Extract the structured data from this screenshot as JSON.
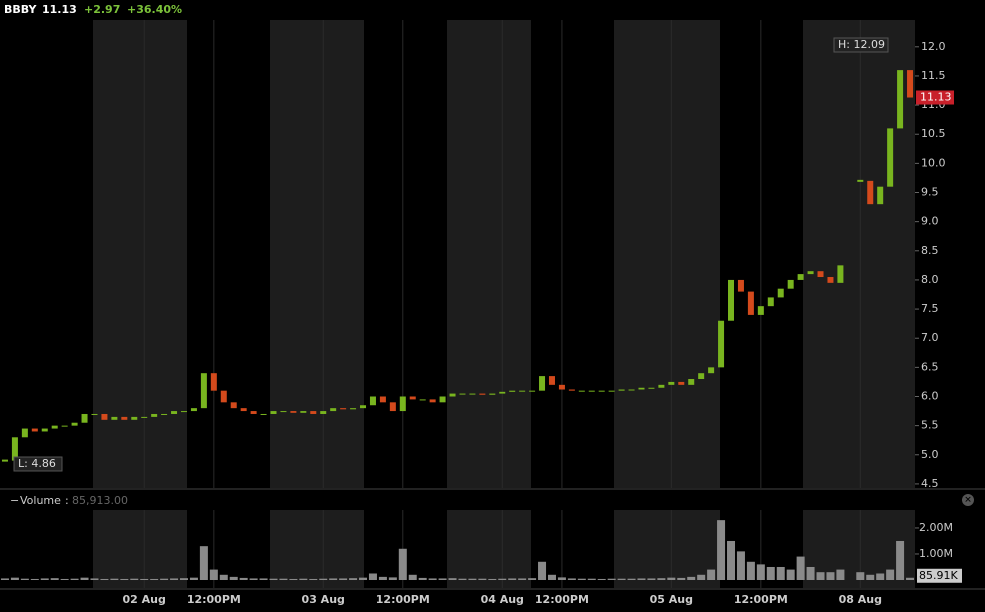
{
  "header": {
    "symbol": "BBBY",
    "price": "11.13",
    "change": "+2.97",
    "change_pct": "+36.40%"
  },
  "chart_data": [
    {
      "type": "candlestick",
      "title": "BBBY",
      "categories": [
        null,
        null,
        null,
        null,
        null,
        null,
        null,
        null,
        null,
        null,
        null,
        null,
        null,
        null,
        "02 Aug",
        null,
        null,
        null,
        null,
        null,
        null,
        "12:00PM",
        null,
        null,
        null,
        null,
        null,
        null,
        null,
        null,
        null,
        null,
        "03 Aug",
        null,
        null,
        null,
        null,
        null,
        null,
        null,
        "12:00PM",
        null,
        null,
        null,
        null,
        null,
        null,
        null,
        null,
        null,
        "04 Aug",
        null,
        null,
        null,
        null,
        null,
        "12:00PM",
        null,
        null,
        null,
        null,
        null,
        null,
        null,
        null,
        null,
        null,
        "05 Aug",
        null,
        null,
        null,
        null,
        null,
        null,
        null,
        null,
        "12:00PM",
        null,
        null,
        null,
        null,
        null,
        null,
        null,
        null,
        null,
        "08 Aug",
        null,
        null,
        null,
        null,
        null
      ],
      "series": [
        {
          "name": "BBBY",
          "up_color": "#79b51f",
          "down_color": "#d44a1c",
          "values": [
            4.9,
            5.3,
            5.45,
            5.4,
            5.45,
            5.5,
            5.5,
            5.55,
            5.7,
            5.7,
            5.6,
            5.65,
            5.6,
            5.65,
            5.65,
            5.7,
            5.7,
            5.75,
            5.75,
            5.8,
            6.4,
            6.1,
            5.9,
            5.8,
            5.75,
            5.7,
            5.7,
            5.75,
            5.75,
            5.72,
            5.75,
            5.7,
            5.75,
            5.8,
            5.78,
            5.8,
            5.85,
            6.0,
            5.9,
            5.75,
            6.0,
            5.95,
            5.95,
            5.9,
            6.0,
            6.05,
            6.05,
            6.05,
            6.03,
            6.05,
            6.08,
            6.1,
            6.1,
            6.1,
            6.35,
            6.2,
            6.12,
            6.1,
            6.1,
            6.1,
            6.1,
            6.1,
            6.12,
            6.12,
            6.15,
            6.15,
            6.2,
            6.25,
            6.2,
            6.3,
            6.4,
            6.5,
            7.3,
            8.0,
            7.8,
            7.4,
            7.55,
            7.7,
            7.85,
            8.0,
            8.1,
            8.15,
            8.05,
            7.95,
            8.25,
            null,
            9.7,
            9.3,
            9.6,
            10.6,
            11.6,
            11.13
          ]
        }
      ],
      "ylim": [
        4.43,
        12.46
      ],
      "yticks": [
        4.5,
        {
          "value": 5,
          "label": "5.0"
        },
        5.5,
        {
          "value": 6,
          "label": "6.0"
        },
        6.5,
        {
          "value": 7,
          "label": "7.0"
        },
        7.5,
        {
          "value": 8,
          "label": "8.0"
        },
        8.5,
        {
          "value": 9,
          "label": "9.0"
        },
        9.5,
        {
          "value": 10,
          "label": "10.0"
        },
        10.5,
        {
          "value": 11,
          "label": "11.0"
        },
        11.5,
        {
          "value": 12,
          "label": "12.0"
        }
      ],
      "last_label": "11.13",
      "high_label": "H: 12.09",
      "low_label": "L: 4.86"
    },
    {
      "type": "volume",
      "title": "Volume",
      "legend_value_label": "85,913.00",
      "color": "#8a8a8a",
      "values": [
        60000,
        90000,
        50000,
        40000,
        60000,
        70000,
        40000,
        50000,
        90000,
        60000,
        40000,
        50000,
        40000,
        50000,
        40000,
        40000,
        50000,
        60000,
        70000,
        90000,
        1300000,
        400000,
        200000,
        120000,
        80000,
        60000,
        60000,
        50000,
        50000,
        40000,
        50000,
        40000,
        50000,
        60000,
        60000,
        70000,
        90000,
        250000,
        120000,
        100000,
        1200000,
        200000,
        80000,
        60000,
        60000,
        70000,
        50000,
        50000,
        50000,
        40000,
        50000,
        60000,
        60000,
        70000,
        700000,
        200000,
        100000,
        60000,
        50000,
        50000,
        40000,
        50000,
        50000,
        50000,
        60000,
        60000,
        70000,
        90000,
        80000,
        120000,
        200000,
        400000,
        2300000,
        1500000,
        1100000,
        700000,
        600000,
        500000,
        500000,
        400000,
        900000,
        500000,
        300000,
        300000,
        400000,
        null,
        300000,
        200000,
        250000,
        400000,
        1500000,
        85913
      ],
      "last_label": "85.91K",
      "ylim": [
        0,
        2690000
      ],
      "yticks": [
        {
          "value": 1000000,
          "label": "1.00M"
        },
        {
          "value": 2000000,
          "label": "2.00M"
        }
      ]
    }
  ]
}
